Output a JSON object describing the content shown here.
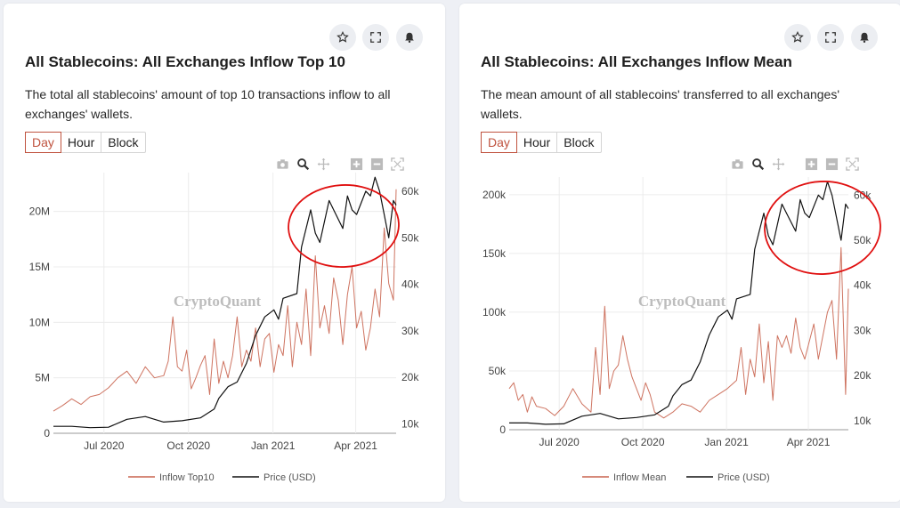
{
  "watermark": "CryptoQuant",
  "icons": [
    "star-icon",
    "expand-icon",
    "bell-icon",
    "camera-icon",
    "zoom-icon",
    "pan-icon",
    "zoom-in-icon",
    "zoom-out-icon",
    "autoscale-icon"
  ],
  "colors": {
    "inflow": "#c9644f",
    "price": "#111111",
    "annotation": "#e01010",
    "active_tab": "#c0533f"
  },
  "left": {
    "title": "All Stablecoins: All Exchanges Inflow Top 10",
    "description": "The total all stablecoins' amount of top 10 transactions inflow to all exchanges' wallets.",
    "tabs": [
      "Day",
      "Hour",
      "Block"
    ],
    "active_tab": "Day"
  },
  "right": {
    "title": "All Stablecoins: All Exchanges Inflow Mean",
    "description": "The mean amount of all stablecoins' transferred to all exchanges' wallets.",
    "tabs": [
      "Day",
      "Hour",
      "Block"
    ],
    "active_tab": "Day"
  },
  "chart_data": [
    {
      "type": "line",
      "title": "All Stablecoins: All Exchanges Inflow Top 10",
      "x_ticks": [
        "Jul 2020",
        "Oct 2020",
        "Jan 2021",
        "Apr 2021"
      ],
      "x_range": [
        "2020-05-07",
        "2021-05-15"
      ],
      "y_left_ticks": [
        "0",
        "5M",
        "10M",
        "15M",
        "20M"
      ],
      "y_left_range": [
        0,
        23500000
      ],
      "y_right_ticks": [
        "10k",
        "20k",
        "30k",
        "40k",
        "50k",
        "60k"
      ],
      "y_right_range": [
        8000,
        64000
      ],
      "grid": true,
      "legend_position": "bottom",
      "series": [
        {
          "name": "Inflow Top10",
          "axis": "left",
          "values": [
            [
              0,
              2000000
            ],
            [
              10,
              2500000
            ],
            [
              20,
              3100000
            ],
            [
              30,
              2600000
            ],
            [
              40,
              3300000
            ],
            [
              50,
              3500000
            ],
            [
              60,
              4100000
            ],
            [
              70,
              5000000
            ],
            [
              80,
              5600000
            ],
            [
              90,
              4500000
            ],
            [
              100,
              6000000
            ],
            [
              110,
              5000000
            ],
            [
              120,
              5200000
            ],
            [
              125,
              6500000
            ],
            [
              130,
              10500000
            ],
            [
              135,
              6000000
            ],
            [
              140,
              5600000
            ],
            [
              145,
              7500000
            ],
            [
              150,
              4000000
            ],
            [
              155,
              5000000
            ],
            [
              160,
              6100000
            ],
            [
              165,
              7000000
            ],
            [
              170,
              3500000
            ],
            [
              175,
              8500000
            ],
            [
              180,
              4500000
            ],
            [
              185,
              6500000
            ],
            [
              190,
              5000000
            ],
            [
              195,
              7000000
            ],
            [
              200,
              10500000
            ],
            [
              205,
              6000000
            ],
            [
              210,
              7500000
            ],
            [
              215,
              6500000
            ],
            [
              220,
              9500000
            ],
            [
              225,
              6000000
            ],
            [
              230,
              8500000
            ],
            [
              235,
              9000000
            ],
            [
              240,
              5500000
            ],
            [
              245,
              8000000
            ],
            [
              250,
              7000000
            ],
            [
              255,
              11500000
            ],
            [
              260,
              6000000
            ],
            [
              265,
              10000000
            ],
            [
              270,
              8000000
            ],
            [
              275,
              13000000
            ],
            [
              280,
              7000000
            ],
            [
              285,
              16000000
            ],
            [
              290,
              9500000
            ],
            [
              295,
              11500000
            ],
            [
              300,
              9000000
            ],
            [
              305,
              14000000
            ],
            [
              310,
              12000000
            ],
            [
              315,
              8000000
            ],
            [
              320,
              12500000
            ],
            [
              325,
              15000000
            ],
            [
              330,
              9500000
            ],
            [
              335,
              11000000
            ],
            [
              340,
              7500000
            ],
            [
              345,
              9500000
            ],
            [
              350,
              13000000
            ],
            [
              355,
              10500000
            ],
            [
              360,
              18500000
            ],
            [
              365,
              13500000
            ],
            [
              370,
              12000000
            ],
            [
              373,
              22000000
            ]
          ]
        },
        {
          "name": "Price (USD)",
          "axis": "right",
          "values": [
            [
              0,
              9500
            ],
            [
              20,
              9500
            ],
            [
              40,
              9200
            ],
            [
              60,
              9300
            ],
            [
              80,
              11000
            ],
            [
              100,
              11600
            ],
            [
              120,
              10400
            ],
            [
              140,
              10700
            ],
            [
              160,
              11300
            ],
            [
              175,
              13200
            ],
            [
              180,
              15500
            ],
            [
              190,
              18000
            ],
            [
              200,
              19000
            ],
            [
              210,
              23000
            ],
            [
              220,
              29000
            ],
            [
              230,
              33000
            ],
            [
              240,
              34500
            ],
            [
              245,
              32500
            ],
            [
              250,
              37000
            ],
            [
              265,
              38000
            ],
            [
              270,
              48000
            ],
            [
              280,
              56000
            ],
            [
              285,
              51000
            ],
            [
              290,
              49000
            ],
            [
              300,
              58000
            ],
            [
              305,
              56000
            ],
            [
              315,
              52000
            ],
            [
              320,
              59000
            ],
            [
              325,
              56000
            ],
            [
              330,
              55000
            ],
            [
              340,
              60000
            ],
            [
              345,
              59000
            ],
            [
              350,
              63000
            ],
            [
              355,
              60000
            ],
            [
              360,
              55000
            ],
            [
              365,
              50000
            ],
            [
              370,
              58000
            ],
            [
              373,
              57000
            ]
          ]
        }
      ]
    },
    {
      "type": "line",
      "title": "All Stablecoins: All Exchanges Inflow Mean",
      "x_ticks": [
        "Jul 2020",
        "Oct 2020",
        "Jan 2021",
        "Apr 2021"
      ],
      "x_range": [
        "2020-05-07",
        "2021-05-15"
      ],
      "y_left_ticks": [
        "0",
        "50k",
        "100k",
        "150k",
        "200k"
      ],
      "y_left_range": [
        0,
        215000
      ],
      "y_right_ticks": [
        "10k",
        "20k",
        "30k",
        "40k",
        "50k",
        "60k"
      ],
      "y_right_range": [
        8000,
        64000
      ],
      "grid": true,
      "legend_position": "bottom",
      "series": [
        {
          "name": "Inflow Mean",
          "axis": "left",
          "values": [
            [
              0,
              35000
            ],
            [
              5,
              40000
            ],
            [
              10,
              25000
            ],
            [
              15,
              30000
            ],
            [
              20,
              15000
            ],
            [
              25,
              28000
            ],
            [
              30,
              20000
            ],
            [
              40,
              18000
            ],
            [
              50,
              12000
            ],
            [
              60,
              20000
            ],
            [
              70,
              35000
            ],
            [
              80,
              22000
            ],
            [
              90,
              15000
            ],
            [
              95,
              70000
            ],
            [
              100,
              30000
            ],
            [
              105,
              105000
            ],
            [
              110,
              35000
            ],
            [
              115,
              50000
            ],
            [
              120,
              55000
            ],
            [
              125,
              80000
            ],
            [
              130,
              60000
            ],
            [
              135,
              45000
            ],
            [
              140,
              35000
            ],
            [
              145,
              25000
            ],
            [
              150,
              40000
            ],
            [
              155,
              30000
            ],
            [
              160,
              15000
            ],
            [
              170,
              10000
            ],
            [
              180,
              15000
            ],
            [
              190,
              22000
            ],
            [
              200,
              20000
            ],
            [
              210,
              15000
            ],
            [
              220,
              25000
            ],
            [
              230,
              30000
            ],
            [
              240,
              35000
            ],
            [
              250,
              42000
            ],
            [
              255,
              70000
            ],
            [
              260,
              30000
            ],
            [
              265,
              60000
            ],
            [
              270,
              45000
            ],
            [
              275,
              90000
            ],
            [
              280,
              40000
            ],
            [
              285,
              75000
            ],
            [
              290,
              25000
            ],
            [
              295,
              80000
            ],
            [
              300,
              70000
            ],
            [
              305,
              80000
            ],
            [
              310,
              65000
            ],
            [
              315,
              95000
            ],
            [
              320,
              70000
            ],
            [
              325,
              60000
            ],
            [
              330,
              75000
            ],
            [
              335,
              90000
            ],
            [
              340,
              60000
            ],
            [
              345,
              80000
            ],
            [
              350,
              100000
            ],
            [
              355,
              110000
            ],
            [
              360,
              60000
            ],
            [
              365,
              155000
            ],
            [
              370,
              30000
            ],
            [
              373,
              120000
            ]
          ]
        },
        {
          "name": "Price (USD)",
          "axis": "right",
          "values": [
            [
              0,
              9500
            ],
            [
              20,
              9500
            ],
            [
              40,
              9200
            ],
            [
              60,
              9300
            ],
            [
              80,
              11000
            ],
            [
              100,
              11600
            ],
            [
              120,
              10400
            ],
            [
              140,
              10700
            ],
            [
              160,
              11300
            ],
            [
              175,
              13200
            ],
            [
              180,
              15500
            ],
            [
              190,
              18000
            ],
            [
              200,
              19000
            ],
            [
              210,
              23000
            ],
            [
              220,
              29000
            ],
            [
              230,
              33000
            ],
            [
              240,
              34500
            ],
            [
              245,
              32500
            ],
            [
              250,
              37000
            ],
            [
              265,
              38000
            ],
            [
              270,
              48000
            ],
            [
              280,
              56000
            ],
            [
              285,
              51000
            ],
            [
              290,
              49000
            ],
            [
              300,
              58000
            ],
            [
              305,
              56000
            ],
            [
              315,
              52000
            ],
            [
              320,
              59000
            ],
            [
              325,
              56000
            ],
            [
              330,
              55000
            ],
            [
              340,
              60000
            ],
            [
              345,
              59000
            ],
            [
              350,
              63000
            ],
            [
              355,
              60000
            ],
            [
              360,
              55000
            ],
            [
              365,
              50000
            ],
            [
              370,
              58000
            ],
            [
              373,
              57000
            ]
          ]
        }
      ]
    }
  ]
}
